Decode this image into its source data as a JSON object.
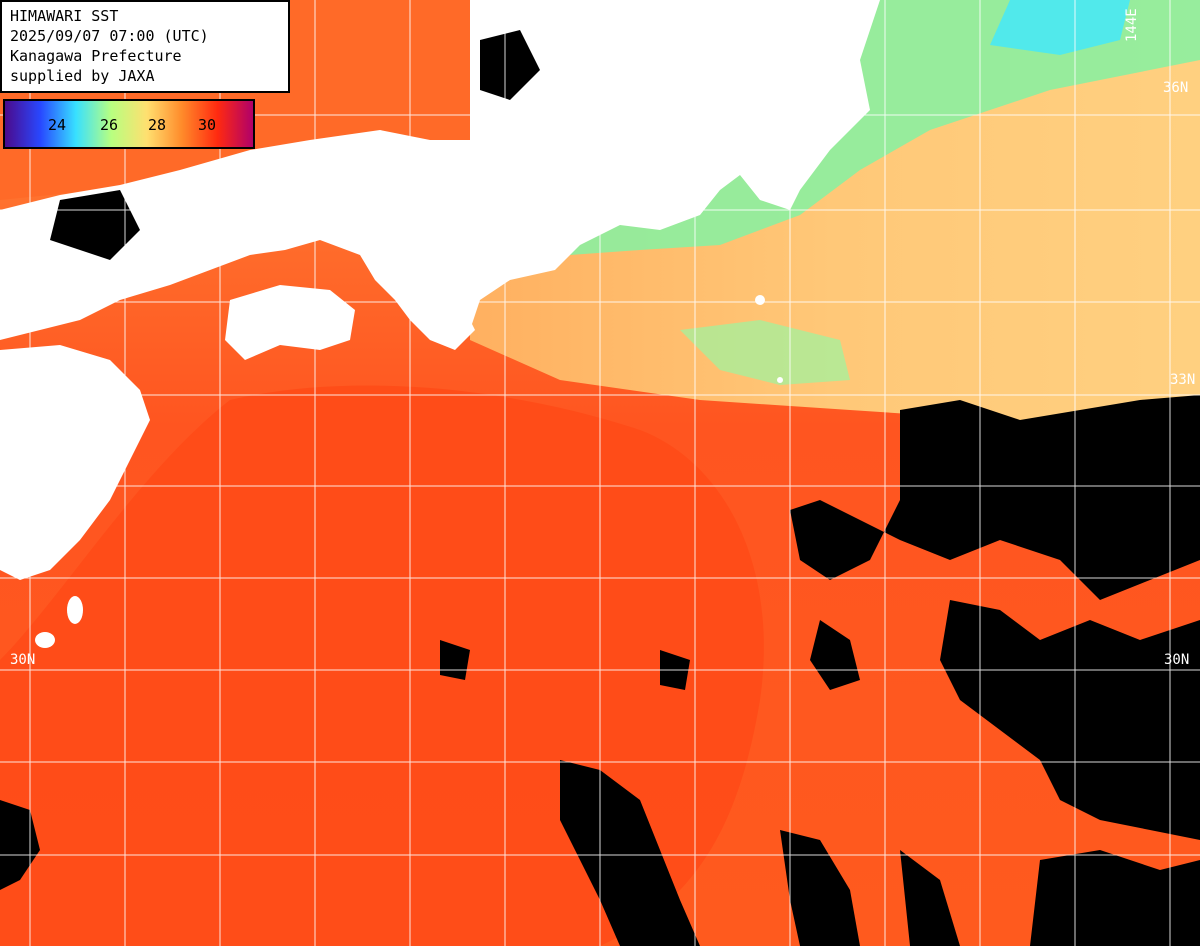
{
  "title": {
    "line1": "HIMAWARI SST",
    "line2": "2025/09/07 07:00 (UTC)",
    "line3": "Kanagawa Prefecture",
    "line4": "supplied by JAXA"
  },
  "colorbar": {
    "labels": [
      "24",
      "26",
      "28",
      "30"
    ],
    "stops": [
      "#4b0a8c",
      "#2848ff",
      "#38e0ff",
      "#b8ff80",
      "#ffe070",
      "#ff8a2a",
      "#ff2a10",
      "#b0006a"
    ]
  },
  "grid_labels": {
    "lat_36": "36N",
    "lat_33": "33N",
    "lat_30_left": "30N",
    "lat_30_right": "30N",
    "lon_144": "144E"
  },
  "colors": {
    "ocean_warm": "#ff5a1e",
    "ocean_hot": "#ff3a12",
    "ocean_cool": "#ffc060",
    "ocean_coastal": "#8cf0a0",
    "land": "#ffffff",
    "cloud": "#000000",
    "grid": "#ffffff"
  }
}
